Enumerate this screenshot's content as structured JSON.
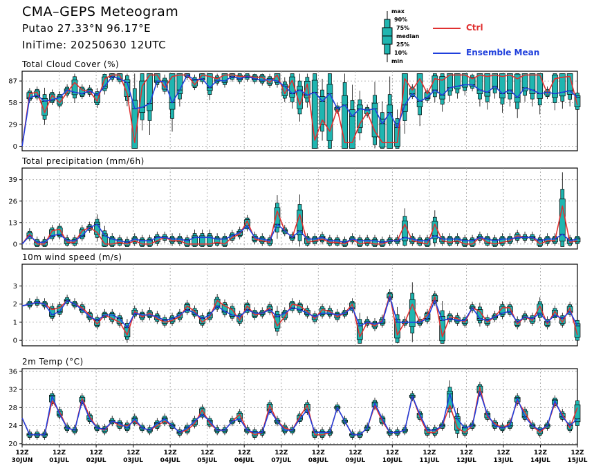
{
  "header": {
    "title": "CMA–GEPS Meteogram",
    "location": "Putao 27.33°N 96.17°E",
    "init_time": "IniTime: 20250630 12UTC"
  },
  "legend": {
    "box_labels": [
      "max",
      "90%",
      "75%",
      "median",
      "25%",
      "10%",
      "min"
    ],
    "ctrl_label": "Ctrl",
    "mean_label": "Ensemble Mean",
    "ctrl_color": "#e03030",
    "mean_color": "#1f3fdc",
    "box_fill": "#1fb5b0"
  },
  "x_axis": {
    "tick_labels": [
      {
        "hour": "12Z",
        "date": "30JUN"
      },
      {
        "hour": "12Z",
        "date": "01JUL"
      },
      {
        "hour": "12Z",
        "date": "02JUL"
      },
      {
        "hour": "12Z",
        "date": "03JUL"
      },
      {
        "hour": "12Z",
        "date": "04JUL"
      },
      {
        "hour": "12Z",
        "date": "05JUL"
      },
      {
        "hour": "12Z",
        "date": "06JUL"
      },
      {
        "hour": "12Z",
        "date": "07JUL"
      },
      {
        "hour": "12Z",
        "date": "08JUL"
      },
      {
        "hour": "12Z",
        "date": "09JUL"
      },
      {
        "hour": "12Z",
        "date": "10JUL"
      },
      {
        "hour": "12Z",
        "date": "11JUL"
      },
      {
        "hour": "12Z",
        "date": "12JUL"
      },
      {
        "hour": "12Z",
        "date": "13JUL"
      },
      {
        "hour": "12Z",
        "date": "14JUL"
      },
      {
        "hour": "12Z",
        "date": "15JUL"
      }
    ]
  },
  "chart_data": [
    {
      "type": "line",
      "title": "Total Cloud Cover (%)",
      "yticks": [
        0,
        29,
        58,
        87
      ],
      "ylim": [
        -6,
        100
      ],
      "grid": true,
      "series": [
        {
          "name": "Ctrl",
          "values": [
            0,
            70,
            72,
            45,
            68,
            58,
            72,
            85,
            75,
            73,
            60,
            90,
            95,
            95,
            70,
            5,
            80,
            95,
            95,
            78,
            93,
            95,
            95,
            82,
            95,
            93,
            90,
            95,
            95,
            93,
            93,
            92,
            92,
            85,
            95,
            70,
            88,
            55,
            83,
            8,
            35,
            20,
            50,
            5,
            5,
            30,
            45,
            20,
            5,
            5,
            5,
            90,
            75,
            90,
            70,
            90,
            88,
            95,
            95,
            95,
            90,
            95,
            93,
            95,
            93,
            95,
            90,
            95,
            95,
            95,
            70,
            90,
            92,
            93,
            55
          ]
        },
        {
          "name": "Ensemble Mean",
          "values": [
            0,
            65,
            68,
            60,
            62,
            65,
            75,
            72,
            70,
            74,
            68,
            80,
            93,
            90,
            85,
            50,
            52,
            57,
            87,
            86,
            58,
            75,
            95,
            88,
            90,
            78,
            88,
            87,
            93,
            90,
            93,
            90,
            88,
            89,
            87,
            80,
            70,
            75,
            68,
            72,
            60,
            70,
            50,
            55,
            40,
            50,
            48,
            50,
            30,
            45,
            25,
            55,
            70,
            60,
            65,
            75,
            68,
            78,
            80,
            82,
            82,
            75,
            72,
            80,
            70,
            75,
            65,
            78,
            75,
            70,
            72,
            70,
            72,
            74,
            65
          ]
        }
      ]
    },
    {
      "type": "line",
      "title": "Total precipitation (mm/6h)",
      "yticks": [
        0,
        13,
        26,
        39
      ],
      "ylim": [
        -3,
        46
      ],
      "grid": true,
      "series": [
        {
          "name": "Ctrl",
          "values": [
            0,
            6,
            0,
            0,
            8,
            9,
            1,
            1,
            8,
            10,
            7,
            0,
            0,
            1,
            0,
            2,
            0,
            0,
            2,
            4,
            2,
            2,
            0,
            0,
            0,
            0,
            1,
            0,
            4,
            6,
            14,
            3,
            2,
            1,
            20,
            8,
            4,
            18,
            1,
            2,
            3,
            1,
            1,
            0,
            3,
            0,
            1,
            0,
            0,
            2,
            2,
            12,
            2,
            1,
            0,
            12,
            2,
            1,
            2,
            0,
            0,
            4,
            1,
            0,
            1,
            2,
            5,
            4,
            4,
            0,
            2,
            2,
            23,
            1,
            2
          ]
        },
        {
          "name": "Ensemble Mean",
          "values": [
            0,
            5,
            1,
            1,
            5,
            6,
            2,
            2,
            5,
            10,
            12,
            5,
            3,
            2,
            1,
            3,
            2,
            2,
            4,
            4,
            3,
            3,
            2,
            4,
            4,
            4,
            3,
            3,
            5,
            7,
            11,
            4,
            3,
            2,
            12,
            8,
            4,
            8,
            3,
            3,
            4,
            2,
            2,
            1,
            3,
            2,
            2,
            2,
            1,
            2,
            2,
            4,
            3,
            2,
            2,
            5,
            3,
            3,
            3,
            2,
            2,
            4,
            3,
            2,
            3,
            3,
            4,
            4,
            4,
            2,
            3,
            3,
            6,
            2,
            3
          ]
        }
      ]
    },
    {
      "type": "line",
      "title": "10m wind speed (m/s)",
      "yticks": [
        0,
        1,
        2,
        3
      ],
      "ylim": [
        -0.3,
        4.2
      ],
      "grid": true,
      "series": [
        {
          "name": "Ctrl",
          "values": [
            1.9,
            2.0,
            2.1,
            2.0,
            1.7,
            1.8,
            2.2,
            2.0,
            1.8,
            1.4,
            0.9,
            1.4,
            1.2,
            1.0,
            0.3,
            1.6,
            1.3,
            1.5,
            1.2,
            1.0,
            1.1,
            1.3,
            1.9,
            1.6,
            1.0,
            1.3,
            2.2,
            1.9,
            1.7,
            1.1,
            1.9,
            1.4,
            1.5,
            1.8,
            0.8,
            1.3,
            2.0,
            1.9,
            1.6,
            1.2,
            1.7,
            1.6,
            1.3,
            1.5,
            2.0,
            0.2,
            1.0,
            0.8,
            1.1,
            2.5,
            0.3,
            1.0,
            2.0,
            1.0,
            1.4,
            2.4,
            0.2,
            1.3,
            1.2,
            1.0,
            1.8,
            1.6,
            1.0,
            1.3,
            1.8,
            1.8,
            0.9,
            1.3,
            1.1,
            1.9,
            0.9,
            1.6,
            1.0,
            1.8,
            0.3
          ]
        },
        {
          "name": "Ensemble Mean",
          "values": [
            1.9,
            2.0,
            2.1,
            2.0,
            1.4,
            1.6,
            2.2,
            2.0,
            1.7,
            1.3,
            1.1,
            1.4,
            1.4,
            1.2,
            0.7,
            1.5,
            1.4,
            1.4,
            1.3,
            1.1,
            1.2,
            1.4,
            1.7,
            1.5,
            1.2,
            1.4,
            1.9,
            1.6,
            1.4,
            1.3,
            1.7,
            1.5,
            1.5,
            1.7,
            1.3,
            1.5,
            1.8,
            1.7,
            1.5,
            1.3,
            1.5,
            1.5,
            1.4,
            1.5,
            1.8,
            0.8,
            1.0,
            0.9,
            1.0,
            2.4,
            1.0,
            1.0,
            1.0,
            1.0,
            1.2,
            2.2,
            1.1,
            1.2,
            1.1,
            1.1,
            1.8,
            1.2,
            1.1,
            1.3,
            1.5,
            1.6,
            1.0,
            1.3,
            1.2,
            1.5,
            1.0,
            1.4,
            1.2,
            1.6,
            0.8
          ]
        }
      ]
    },
    {
      "type": "line",
      "title": "2m Temp (°C)",
      "yticks": [
        20,
        24,
        28,
        32,
        36
      ],
      "ylim": [
        19.8,
        36.6
      ],
      "grid": true,
      "series": [
        {
          "name": "Ctrl",
          "values": [
            25.7,
            22,
            22,
            22,
            29.5,
            27,
            23.5,
            23,
            30,
            26,
            23.5,
            23,
            25,
            24,
            24,
            25,
            23.5,
            23,
            24,
            25,
            24,
            22.5,
            23,
            24.5,
            27.5,
            24.5,
            23,
            23,
            25,
            26.5,
            23,
            22,
            22.5,
            28.5,
            25,
            23.5,
            23,
            26,
            28.5,
            22,
            22,
            22.5,
            28,
            25,
            22,
            22,
            23.5,
            28.5,
            25,
            22.5,
            22.5,
            23,
            30.5,
            26,
            22.5,
            22.5,
            24,
            28.5,
            23.5,
            22.5,
            24,
            32.5,
            26,
            24.5,
            23.5,
            24.5,
            29.5,
            27,
            24,
            22.5,
            24,
            29,
            26.5,
            23.5,
            28
          ]
        },
        {
          "name": "Ensemble Mean",
          "values": [
            25.7,
            22,
            22,
            22,
            30.5,
            26.5,
            23.5,
            23,
            29.5,
            25.5,
            23.5,
            23.2,
            25,
            24.5,
            23.5,
            25.5,
            23.5,
            23,
            24.5,
            25.5,
            24,
            22.5,
            23.5,
            25,
            26.5,
            25,
            23,
            23,
            25,
            25.5,
            23,
            22.5,
            22.5,
            27.5,
            25,
            23,
            23,
            25.5,
            27.5,
            22.5,
            22.5,
            22.5,
            28,
            25,
            22,
            22,
            23.5,
            29,
            25.5,
            22.5,
            22.5,
            23,
            30.5,
            26.5,
            23,
            23,
            24,
            31,
            25.5,
            23.5,
            24,
            31.5,
            26.5,
            24,
            23.5,
            24,
            30,
            26,
            24,
            23,
            24,
            29.5,
            26,
            24,
            25.5
          ]
        }
      ]
    }
  ]
}
